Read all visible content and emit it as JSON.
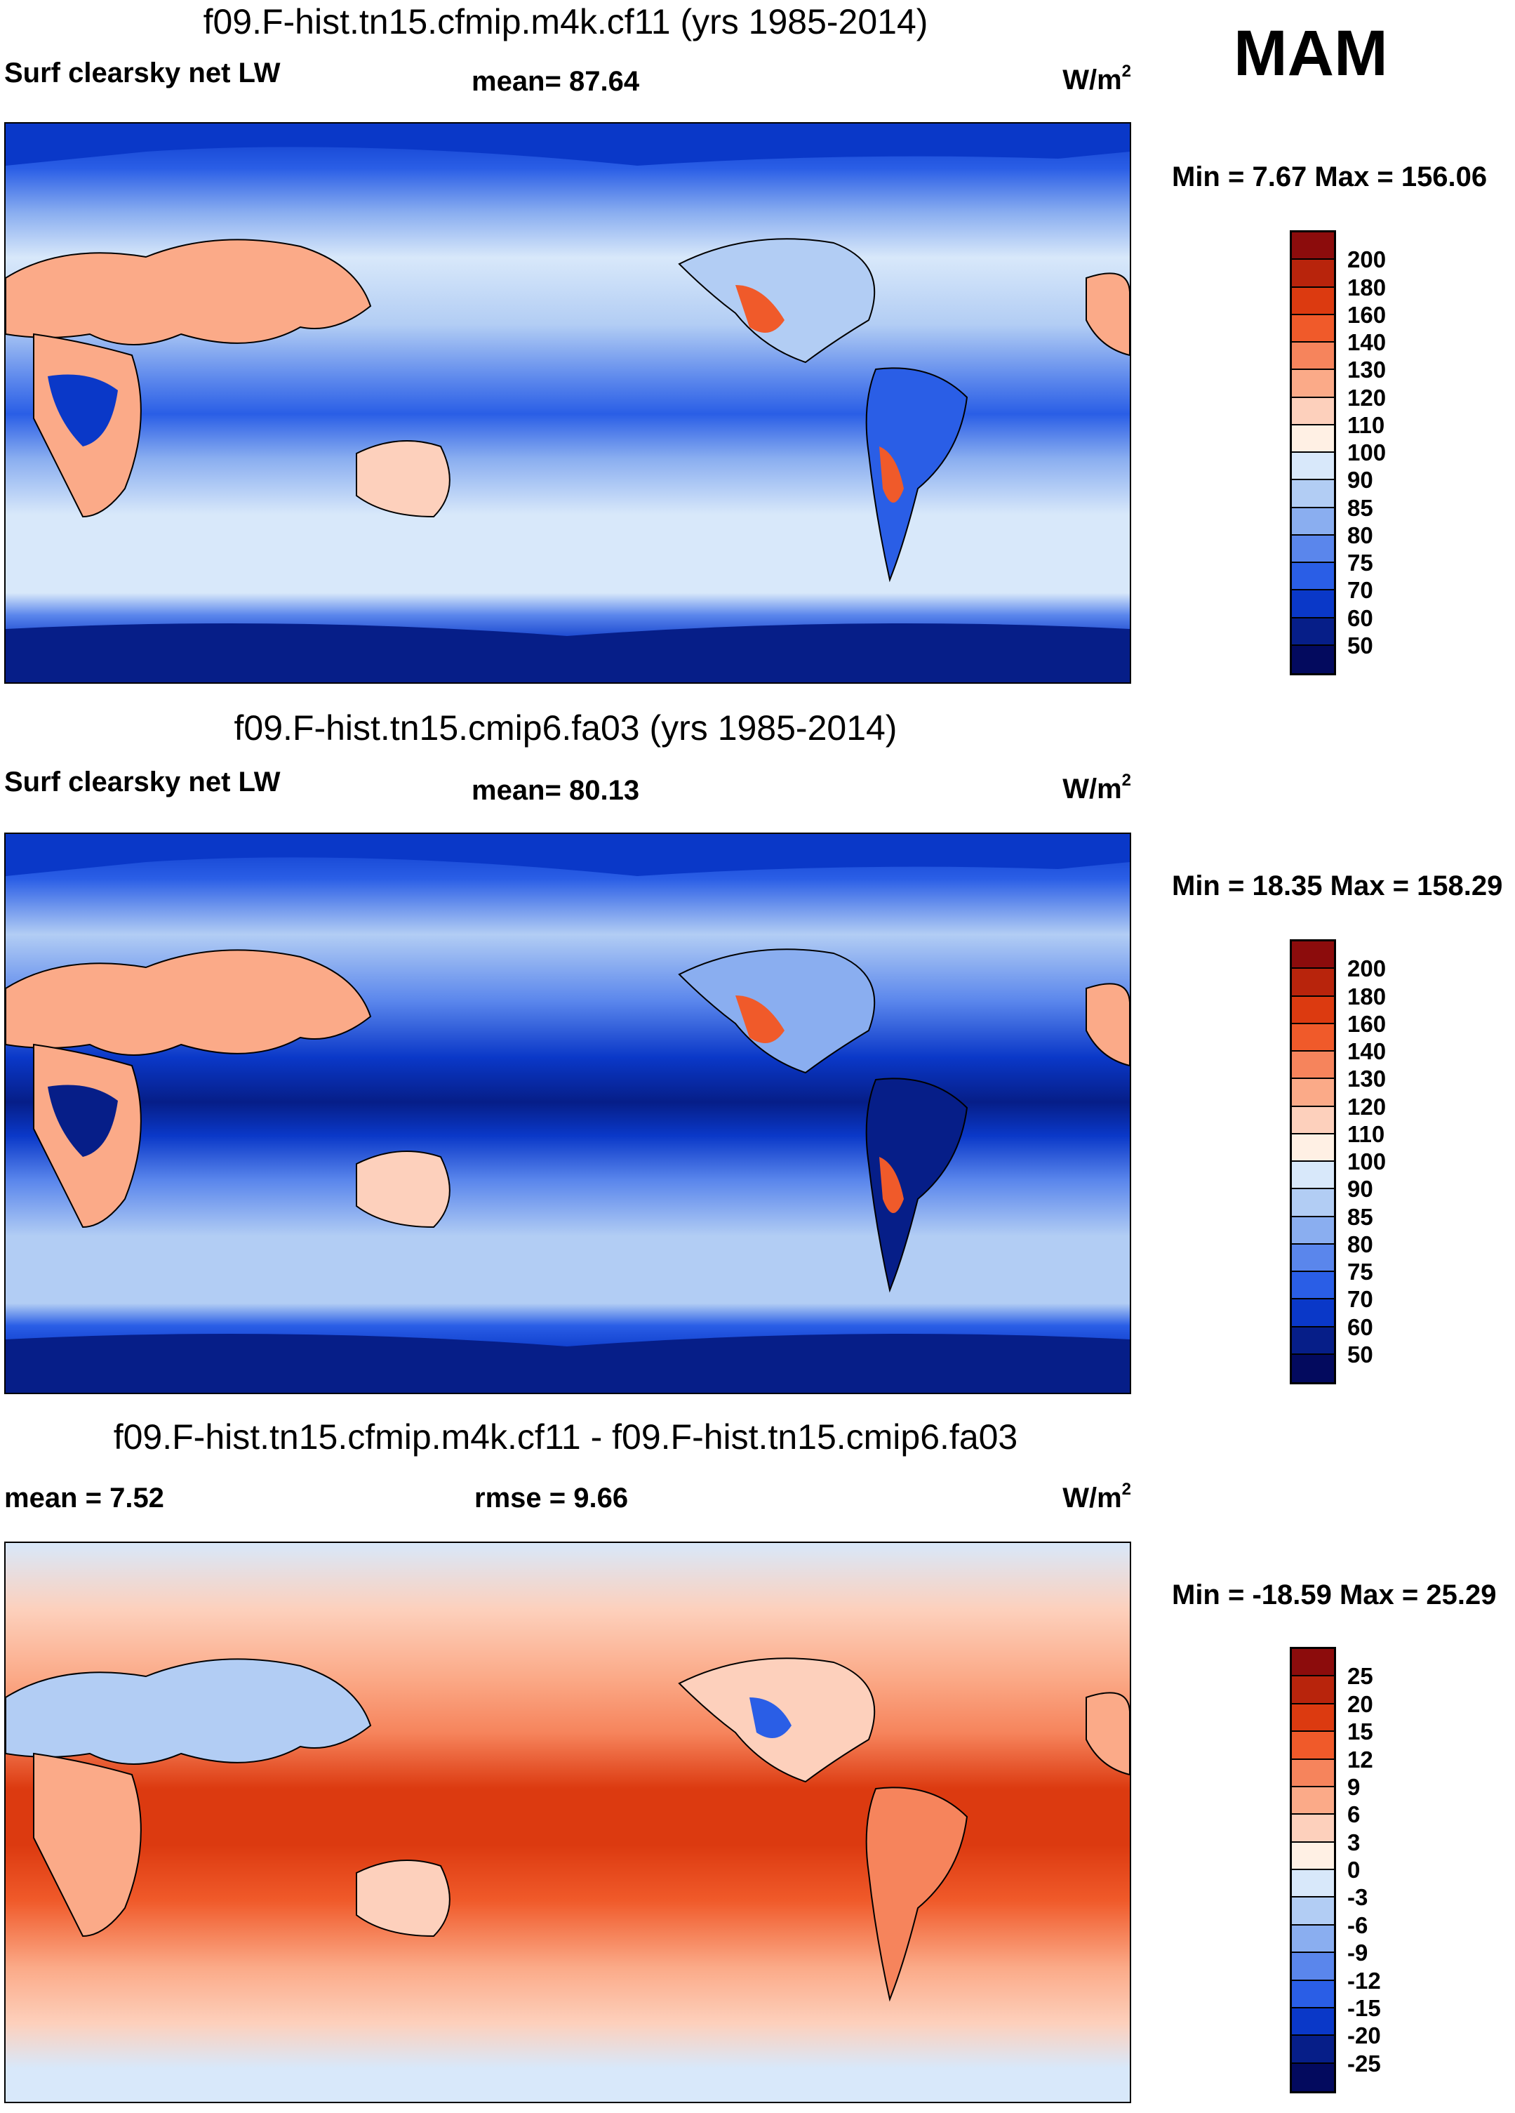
{
  "season": "MAM",
  "panels": [
    {
      "title": "f09.F-hist.tn15.cfmip.m4k.cf11 (yrs 1985-2014)",
      "variable": "Surf clearsky net LW",
      "stat1": "mean=  87.64",
      "stat2": "",
      "units": "W/m",
      "units_sup": "2",
      "minmax": "Min =   7.67 Max = 156.06",
      "colorbar": {
        "labels": [
          "200",
          "180",
          "160",
          "140",
          "130",
          "120",
          "110",
          "100",
          "90",
          "85",
          "80",
          "75",
          "70",
          "60",
          "50"
        ],
        "colors": [
          "#8c0c0c",
          "#b8240c",
          "#dc3a10",
          "#f05a2a",
          "#f6845c",
          "#fbaa88",
          "#fdd0bc",
          "#fff0e4",
          "#d8e8fa",
          "#b2cdf4",
          "#8aaef0",
          "#5a86ec",
          "#2a5ee6",
          "#0a38c8",
          "#061e88",
          "#030a5e"
        ]
      }
    },
    {
      "title": "f09.F-hist.tn15.cmip6.fa03 (yrs 1985-2014)",
      "variable": "Surf clearsky net LW",
      "stat1": "mean=  80.13",
      "stat2": "",
      "units": "W/m",
      "units_sup": "2",
      "minmax": "Min =  18.35 Max = 158.29",
      "colorbar": {
        "labels": [
          "200",
          "180",
          "160",
          "140",
          "130",
          "120",
          "110",
          "100",
          "90",
          "85",
          "80",
          "75",
          "70",
          "60",
          "50"
        ],
        "colors": [
          "#8c0c0c",
          "#b8240c",
          "#dc3a10",
          "#f05a2a",
          "#f6845c",
          "#fbaa88",
          "#fdd0bc",
          "#fff0e4",
          "#d8e8fa",
          "#b2cdf4",
          "#8aaef0",
          "#5a86ec",
          "#2a5ee6",
          "#0a38c8",
          "#061e88",
          "#030a5e"
        ]
      }
    },
    {
      "title": "f09.F-hist.tn15.cfmip.m4k.cf11 - f09.F-hist.tn15.cmip6.fa03",
      "variable": "mean =   7.52",
      "stat1": "rmse =   9.66",
      "stat2": "",
      "units": "W/m",
      "units_sup": "2",
      "minmax": "Min = -18.59 Max =  25.29",
      "colorbar": {
        "labels": [
          "25",
          "20",
          "15",
          "12",
          "9",
          "6",
          "3",
          "0",
          "-3",
          "-6",
          "-9",
          "-12",
          "-15",
          "-20",
          "-25"
        ],
        "colors": [
          "#8c0c0c",
          "#b8240c",
          "#dc3a10",
          "#f05a2a",
          "#f6845c",
          "#fbaa88",
          "#fdd0bc",
          "#fff0e4",
          "#d8e8fa",
          "#b2cdf4",
          "#8aaef0",
          "#5a86ec",
          "#2a5ee6",
          "#0a38c8",
          "#061e88",
          "#030a5e"
        ]
      }
    }
  ]
}
